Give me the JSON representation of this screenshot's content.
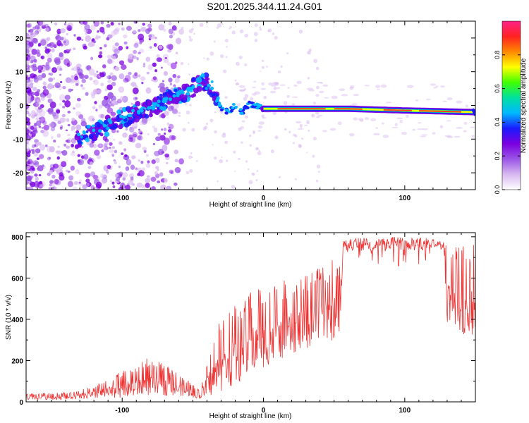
{
  "title": "S201.2025.344.11.24.G01",
  "colors": {
    "snr_line": "#ee3333",
    "frame": "#000000",
    "colormap": [
      "#ffffff",
      "#d8b8f0",
      "#9a55e6",
      "#7a00e0",
      "#1a1aff",
      "#00b8ff",
      "#00e0a0",
      "#40ff00",
      "#ffff00",
      "#ff8800",
      "#ff2222",
      "#ff2288"
    ]
  },
  "chart_data": [
    {
      "type": "heatmap",
      "name": "spectrogram",
      "xlabel": "Height of straight line (km)",
      "ylabel": "Frequency (Hz)",
      "xlim": [
        -168,
        150
      ],
      "ylim": [
        -25,
        25
      ],
      "xticks": [
        "-100",
        "0",
        "100"
      ],
      "xtick_values": [
        -100,
        0,
        100
      ],
      "yticks": [
        "-20",
        "-10",
        "0",
        "10",
        "20"
      ],
      "ytick_values": [
        -20,
        -10,
        0,
        10,
        20
      ],
      "colorbar": {
        "label": "Normalized spectral amplitude",
        "range": [
          0,
          1
        ],
        "ticks": [
          "0.0",
          "0.2",
          "0.4",
          "0.6",
          "0.8"
        ],
        "tick_values": [
          0.0,
          0.2,
          0.4,
          0.6,
          0.8
        ]
      },
      "ridge": [
        {
          "x": -130,
          "y": -9.5
        },
        {
          "x": -120,
          "y": -8
        },
        {
          "x": -110,
          "y": -6
        },
        {
          "x": -100,
          "y": -4
        },
        {
          "x": -90,
          "y": -2
        },
        {
          "x": -80,
          "y": -0.5
        },
        {
          "x": -70,
          "y": 1.5
        },
        {
          "x": -60,
          "y": 3
        },
        {
          "x": -50,
          "y": 5
        },
        {
          "x": -45,
          "y": 7.5
        },
        {
          "x": -40,
          "y": 6.5
        },
        {
          "x": -35,
          "y": 4
        },
        {
          "x": -30,
          "y": -1
        },
        {
          "x": -25,
          "y": -2
        },
        {
          "x": -20,
          "y": 0
        },
        {
          "x": -15,
          "y": -2
        },
        {
          "x": -10,
          "y": 0.5
        },
        {
          "x": 0,
          "y": -1
        },
        {
          "x": 20,
          "y": -1
        },
        {
          "x": 60,
          "y": -1
        },
        {
          "x": 100,
          "y": -1.5
        },
        {
          "x": 150,
          "y": -2
        }
      ]
    },
    {
      "type": "line",
      "name": "snr",
      "xlabel": "Height of straight line (km)",
      "ylabel": "SNR (10 * v/v)",
      "xlim": [
        -168,
        150
      ],
      "ylim": [
        0,
        820
      ],
      "xticks": [
        "-100",
        "0",
        "100"
      ],
      "xtick_values": [
        -100,
        0,
        100
      ],
      "yticks": [
        "0",
        "200",
        "400",
        "600",
        "800"
      ],
      "ytick_values": [
        0,
        200,
        400,
        600,
        800
      ],
      "envelope": [
        {
          "x": -168,
          "low": 10,
          "high": 40
        },
        {
          "x": -140,
          "low": 10,
          "high": 45
        },
        {
          "x": -120,
          "low": 15,
          "high": 80
        },
        {
          "x": -100,
          "low": 20,
          "high": 150
        },
        {
          "x": -80,
          "low": 30,
          "high": 220
        },
        {
          "x": -60,
          "low": 30,
          "high": 140
        },
        {
          "x": -45,
          "low": 15,
          "high": 60
        },
        {
          "x": -35,
          "low": 30,
          "high": 350
        },
        {
          "x": -20,
          "low": 80,
          "high": 480
        },
        {
          "x": -5,
          "low": 150,
          "high": 560
        },
        {
          "x": 20,
          "low": 230,
          "high": 600
        },
        {
          "x": 40,
          "low": 280,
          "high": 650
        },
        {
          "x": 54,
          "low": 300,
          "high": 710
        },
        {
          "x": 56,
          "low": 640,
          "high": 790
        },
        {
          "x": 90,
          "low": 640,
          "high": 800
        },
        {
          "x": 128,
          "low": 640,
          "high": 790
        },
        {
          "x": 130,
          "low": 330,
          "high": 780
        },
        {
          "x": 150,
          "low": 320,
          "high": 760
        }
      ]
    }
  ]
}
